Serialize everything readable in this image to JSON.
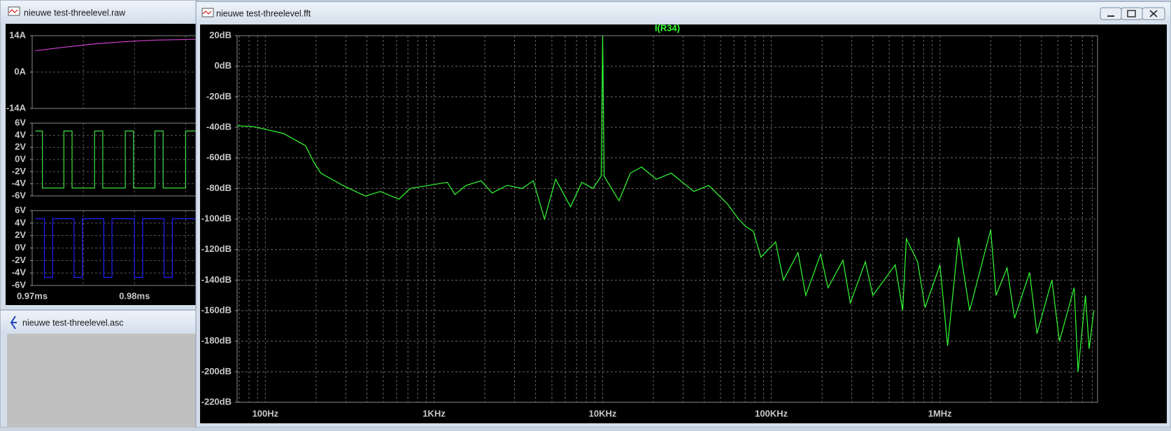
{
  "windows": [
    {
      "title": "nieuwe test-threelevel.raw"
    },
    {
      "title": "nieuwe test-threelevel.asc"
    },
    {
      "title": "nieuwe test-threelevel.fft"
    }
  ],
  "chart_data": [
    {
      "type": "line",
      "xlim": [
        0.97,
        0.986
      ],
      "ylim": [
        -14,
        14
      ],
      "grid": true,
      "yticks": [
        {
          "value": 14,
          "label": "14A"
        },
        {
          "value": 0,
          "label": "0A"
        },
        {
          "value": -14,
          "label": "-14A"
        }
      ],
      "xticks": [
        {
          "value": 0.97,
          "label": null
        },
        {
          "value": 0.975,
          "label": null
        },
        {
          "value": 0.98,
          "label": null
        },
        {
          "value": 0.985,
          "label": null
        }
      ],
      "series": [
        {
          "color": "#d040d0",
          "x": [
            0.9703,
            0.973,
            0.976,
            0.979,
            0.982,
            0.986
          ],
          "values": [
            8.2,
            9.5,
            10.8,
            11.7,
            12.3,
            12.6
          ]
        }
      ]
    },
    {
      "type": "line",
      "xlim": [
        0.97,
        0.986
      ],
      "ylim": [
        -6,
        6
      ],
      "grid": true,
      "yticks": [
        {
          "value": 6,
          "label": "6V"
        },
        {
          "value": 4,
          "label": "4V"
        },
        {
          "value": 2,
          "label": "2V"
        },
        {
          "value": 0,
          "label": "0V"
        },
        {
          "value": -2,
          "label": "-2V"
        },
        {
          "value": -4,
          "label": "-4V"
        },
        {
          "value": -6,
          "label": "-6V"
        }
      ],
      "xticks": [
        {
          "value": 0.97,
          "label": null
        },
        {
          "value": 0.975,
          "label": null
        },
        {
          "value": 0.98,
          "label": null
        },
        {
          "value": 0.985,
          "label": null
        }
      ],
      "series": [
        {
          "color": "#40e040",
          "x": [
            0.9703,
            0.971,
            0.971,
            0.9731,
            0.9731,
            0.9739,
            0.9739,
            0.9761,
            0.9761,
            0.9769,
            0.9769,
            0.9791,
            0.9791,
            0.9799,
            0.9799,
            0.982,
            0.982,
            0.9828,
            0.9828,
            0.985,
            0.985,
            0.986
          ],
          "values": [
            4.7,
            4.7,
            -4.7,
            -4.7,
            4.7,
            4.7,
            -4.7,
            -4.7,
            4.7,
            4.7,
            -4.7,
            -4.7,
            4.7,
            4.7,
            -4.7,
            -4.7,
            4.7,
            4.7,
            -4.7,
            -4.7,
            4.7,
            4.7
          ]
        }
      ]
    },
    {
      "type": "line",
      "xlim": [
        0.97,
        0.986
      ],
      "ylim": [
        -6,
        6
      ],
      "grid": true,
      "yticks": [
        {
          "value": 6,
          "label": "6V"
        },
        {
          "value": 4,
          "label": "4V"
        },
        {
          "value": 2,
          "label": "2V"
        },
        {
          "value": 0,
          "label": "0V"
        },
        {
          "value": -2,
          "label": "-2V"
        },
        {
          "value": -4,
          "label": "-4V"
        },
        {
          "value": -6,
          "label": "-6V"
        }
      ],
      "xticks": [
        {
          "value": 0.97,
          "label": "0.97ms"
        },
        {
          "value": 0.975,
          "label": null
        },
        {
          "value": 0.98,
          "label": "0.98ms"
        },
        {
          "value": 0.985,
          "label": null
        }
      ],
      "series": [
        {
          "color": "#2020ff",
          "x": [
            0.9703,
            0.9712,
            0.9712,
            0.972,
            0.972,
            0.9741,
            0.9741,
            0.9749,
            0.9749,
            0.977,
            0.977,
            0.9778,
            0.9778,
            0.98,
            0.98,
            0.9808,
            0.9808,
            0.9829,
            0.9829,
            0.9837,
            0.9837,
            0.986
          ],
          "values": [
            4.7,
            4.7,
            -4.7,
            -4.7,
            4.7,
            4.7,
            -4.7,
            -4.7,
            4.7,
            4.7,
            -4.7,
            -4.7,
            4.7,
            4.7,
            -4.7,
            -4.7,
            4.7,
            4.7,
            -4.7,
            -4.7,
            4.7,
            4.7
          ]
        }
      ]
    },
    {
      "type": "line",
      "log_x": true,
      "grid": true,
      "xlim": [
        68,
        8600000
      ],
      "ylim": [
        -220,
        20
      ],
      "yticks": [
        {
          "value": 20,
          "label": "20dB"
        },
        {
          "value": 0,
          "label": "0dB"
        },
        {
          "value": -20,
          "label": "-20dB"
        },
        {
          "value": -40,
          "label": "-40dB"
        },
        {
          "value": -60,
          "label": "-60dB"
        },
        {
          "value": -80,
          "label": "-80dB"
        },
        {
          "value": -100,
          "label": "-100dB"
        },
        {
          "value": -120,
          "label": "-120dB"
        },
        {
          "value": -140,
          "label": "-140dB"
        },
        {
          "value": -160,
          "label": "-160dB"
        },
        {
          "value": -180,
          "label": "-180dB"
        },
        {
          "value": -200,
          "label": "-200dB"
        },
        {
          "value": -220,
          "label": "-220dB"
        }
      ],
      "xticks": [
        {
          "value": 100,
          "label": "100Hz"
        },
        {
          "value": 1000,
          "label": "1KHz"
        },
        {
          "value": 10000,
          "label": "10KHz"
        },
        {
          "value": 100000,
          "label": "100KHz"
        },
        {
          "value": 1000000,
          "label": "1MHz"
        }
      ],
      "xminorticks": [
        70,
        80,
        90,
        200,
        300,
        400,
        500,
        600,
        700,
        800,
        900,
        2000,
        3000,
        4000,
        5000,
        6000,
        7000,
        8000,
        9000,
        20000,
        30000,
        40000,
        50000,
        60000,
        70000,
        80000,
        90000,
        200000,
        300000,
        400000,
        500000,
        600000,
        700000,
        800000,
        900000,
        2000000,
        3000000,
        4000000,
        5000000,
        6000000,
        7000000,
        8000000
      ],
      "series": [
        {
          "name": "I(R34)",
          "color": "#33ff33",
          "x": [
            68,
            85,
            128,
            173,
            192,
            213,
            288,
            392,
            480,
            620,
            722,
            931,
            1200,
            1330,
            1550,
            1900,
            2210,
            2710,
            3330,
            3880,
            4520,
            5260,
            6450,
            7520,
            8760,
            9800,
            10000,
            10200,
            12500,
            14600,
            17000,
            20800,
            25500,
            34700,
            42500,
            54800,
            63900,
            70700,
            78300,
            86700,
            106000,
            118000,
            144000,
            160000,
            196000,
            217000,
            266000,
            294000,
            361000,
            400000,
            543000,
            601000,
            632000,
            737000,
            816000,
            1000000,
            1110000,
            1290000,
            1360000,
            1500000,
            2000000,
            2150000,
            2500000,
            2770000,
            3400000,
            3760000,
            4610000,
            5110000,
            6250000,
            6590000,
            7290000,
            7670000,
            8170000
          ],
          "values": [
            -39,
            -39.5,
            -44,
            -52,
            -62,
            -70,
            -78,
            -85,
            -82,
            -87,
            -80,
            -78,
            -76,
            -84,
            -78,
            -75,
            -83,
            -78,
            -80,
            -75,
            -100,
            -74,
            -92,
            -76,
            -80,
            -72,
            20,
            -72,
            -88,
            -70,
            -66,
            -74,
            -70,
            -82,
            -78,
            -90,
            -100,
            -105,
            -108,
            -125,
            -115,
            -140,
            -122,
            -150,
            -123,
            -145,
            -127,
            -155,
            -128,
            -150,
            -130,
            -160,
            -113,
            -128,
            -158,
            -130,
            -183,
            -112,
            -130,
            -160,
            -107,
            -150,
            -132,
            -165,
            -135,
            -175,
            -140,
            -180,
            -145,
            -200,
            -150,
            -185,
            -160
          ]
        }
      ]
    }
  ]
}
